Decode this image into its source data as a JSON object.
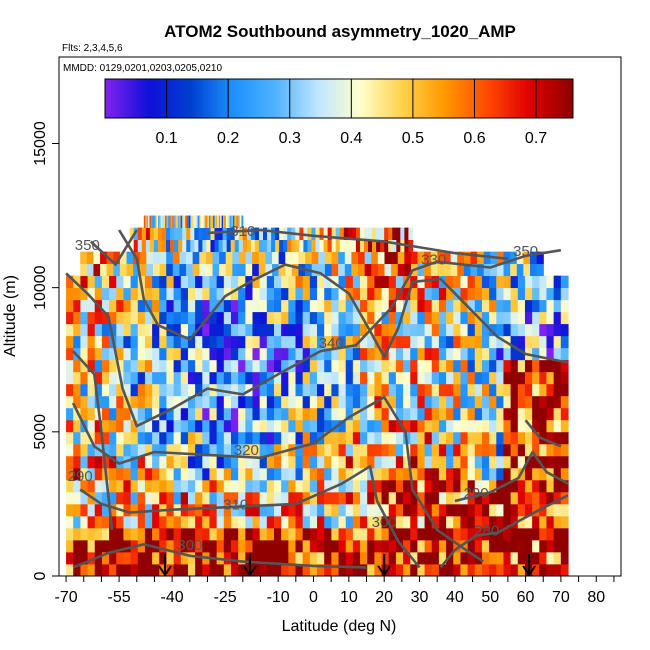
{
  "chart_data": {
    "type": "heatmap",
    "title": "ATOM2 Southbound asymmetry_1020_AMP",
    "flights_note": "Flts: 2,3,4,5,6",
    "dates_note": "MMDD: 0129,0201,0203,0205,0210",
    "xlabel": "Latitude (deg N)",
    "ylabel": "Altitude (m)",
    "xlim": [
      -72,
      87
    ],
    "ylim": [
      0,
      18000
    ],
    "x_ticks": [
      -70,
      -55,
      -40,
      -25,
      -10,
      0,
      10,
      20,
      30,
      40,
      50,
      60,
      70,
      80
    ],
    "y_ticks": [
      0,
      5000,
      10000,
      15000
    ],
    "colorbar": {
      "ticks": [
        0.1,
        0.2,
        0.3,
        0.4,
        0.5,
        0.6,
        0.7
      ],
      "range": [
        0.0,
        0.76
      ],
      "placement": "top inside plot"
    },
    "palette": [
      "#7e22f0",
      "#1010d8",
      "#0040d0",
      "#1e90ff",
      "#4fb4ff",
      "#bfe6ff",
      "#ffffcc",
      "#ffd24a",
      "#ff9900",
      "#ff4a00",
      "#e00000",
      "#900000"
    ],
    "data_extent": {
      "lat_range": [
        -70,
        72
      ],
      "alt_top": 12500
    },
    "arrows_lat": [
      -42,
      -18,
      20,
      61
    ],
    "contour_labels": [
      {
        "text": "350",
        "lat": -64,
        "alt": 11300
      },
      {
        "text": "310",
        "lat": -20,
        "alt": 11800
      },
      {
        "text": "330",
        "lat": 34,
        "alt": 10800
      },
      {
        "text": "350",
        "lat": 60,
        "alt": 11100
      },
      {
        "text": "340",
        "lat": 5,
        "alt": 7900
      },
      {
        "text": "320",
        "lat": -19,
        "alt": 4200
      },
      {
        "text": "310",
        "lat": -22,
        "alt": 2300
      },
      {
        "text": "290",
        "lat": -66,
        "alt": 3300
      },
      {
        "text": "290",
        "lat": 46,
        "alt": 2700
      },
      {
        "text": "300",
        "lat": -35,
        "alt": 900
      },
      {
        "text": "300",
        "lat": 20,
        "alt": 1700
      },
      {
        "text": "280",
        "lat": 49,
        "alt": 1400
      }
    ]
  }
}
